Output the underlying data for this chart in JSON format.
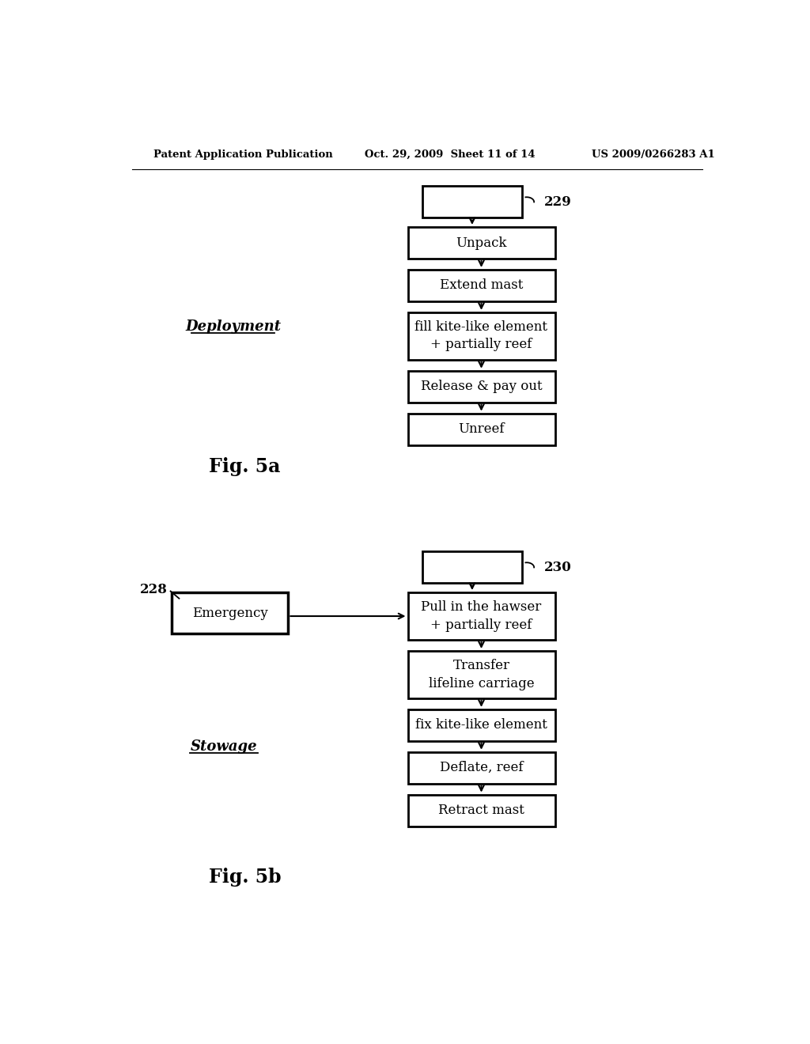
{
  "background_color": "#ffffff",
  "header_left": "Patent Application Publication",
  "header_center": "Oct. 29, 2009  Sheet 11 of 14",
  "header_right": "US 2009/0266283 A1",
  "fig5a_label": "Fig. 5a",
  "fig5b_label": "Fig. 5b",
  "deployment_label": "Deployment",
  "stowage_label": "Stowage",
  "ref229": "229",
  "ref230": "230",
  "ref228": "228",
  "deployment_boxes": [
    {
      "label": "Unpack",
      "multiline": false
    },
    {
      "label": "Extend mast",
      "multiline": false
    },
    {
      "label": "fill kite-like element\n+ partially reef",
      "multiline": true
    },
    {
      "label": "Release & pay out",
      "multiline": false
    },
    {
      "label": "Unreef",
      "multiline": false
    }
  ],
  "stowage_boxes": [
    {
      "label": "Pull in the hawser\n+ partially reef",
      "multiline": true
    },
    {
      "label": "Transfer\nlifeline carriage",
      "multiline": true
    },
    {
      "label": "fix kite-like element",
      "multiline": false
    },
    {
      "label": "Deflate, reef",
      "multiline": false
    },
    {
      "label": "Retract mast",
      "multiline": false
    }
  ],
  "emergency_label": "Emergency"
}
